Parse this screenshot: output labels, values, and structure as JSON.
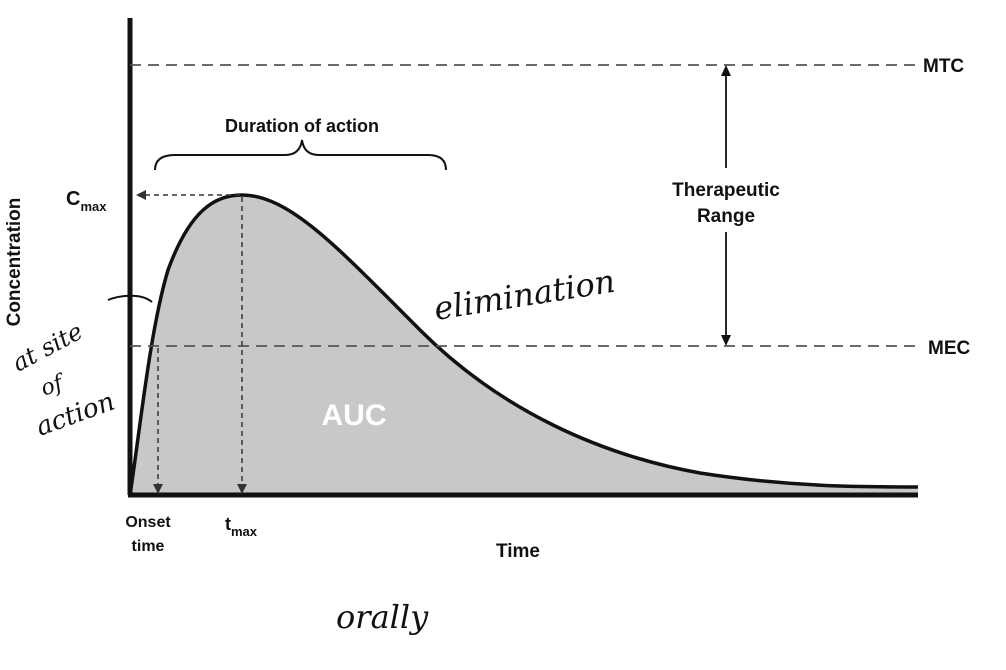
{
  "labels": {
    "y_axis": "Concentration",
    "x_axis": "Time",
    "mtc": "MTC",
    "mec": "MEC",
    "therapeutic_line1": "Therapeutic",
    "therapeutic_line2": "Range",
    "duration": "Duration of action",
    "cmax_main": "C",
    "cmax_sub": "max",
    "tmax_main": "t",
    "tmax_sub": "max",
    "onset_line1": "Onset",
    "onset_line2": "time",
    "auc": "AUC"
  },
  "handwritten": {
    "elimination": "elimination",
    "site_line1": "at site",
    "site_line2": "of",
    "site_line3": "action",
    "orally": "orally"
  },
  "colors": {
    "area_fill": "#c8c8c8",
    "line": "#111111",
    "auc_text": "#ffffff"
  }
}
